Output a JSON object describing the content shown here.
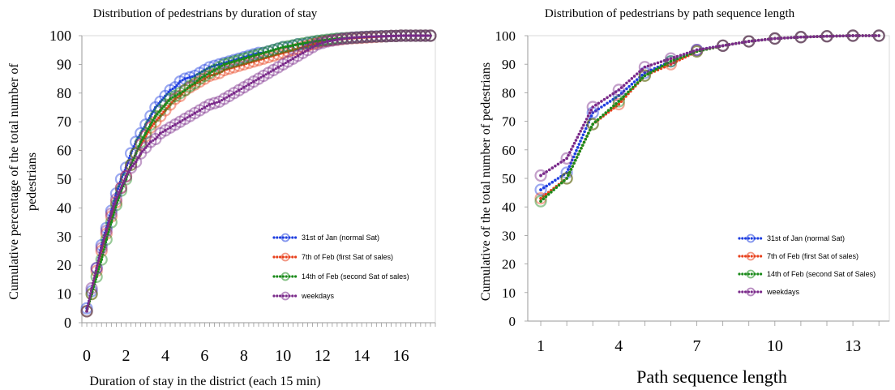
{
  "charts": [
    {
      "type": "line",
      "title": "Distribution of pedestrians by duration of stay",
      "xlabel": "Duration of stay in the district (each 15 min)",
      "ylabel": "Cumulative percentage of the total number of pedestrians",
      "ylabel_lines": [
        "Cumulative percentage of the total number of",
        "pedestrians"
      ],
      "xlim": [
        -0.25,
        17.75
      ],
      "ylim": [
        0,
        100
      ],
      "xticks": [
        "0",
        "2",
        "4",
        "6",
        "8",
        "10",
        "12",
        "14",
        "16"
      ],
      "yticks": [
        "0",
        "10",
        "20",
        "30",
        "40",
        "50",
        "60",
        "70",
        "80",
        "90",
        "100"
      ],
      "grid": false,
      "legend_position": "lower-right",
      "series": [
        {
          "name": "31st of Jan (normal Sat)",
          "color": "#1f3fe0",
          "x": [
            0,
            0.25,
            0.5,
            0.75,
            1,
            1.25,
            1.5,
            1.75,
            2,
            2.25,
            2.5,
            2.75,
            3,
            3.25,
            3.5,
            3.75,
            4,
            4.25,
            4.5,
            4.75,
            5,
            5.25,
            5.5,
            5.75,
            6,
            6.25,
            6.5,
            6.75,
            7,
            7.25,
            7.5,
            7.75,
            8,
            8.25,
            8.5,
            8.75,
            9,
            9.25,
            9.5,
            9.75,
            10,
            10.25,
            10.5,
            10.75,
            11,
            11.25,
            11.5,
            11.75,
            12,
            12.25,
            12.5,
            12.75,
            13,
            13.25,
            13.5,
            13.75,
            14,
            14.25,
            14.5,
            14.75,
            15,
            15.25,
            15.5,
            15.75,
            16,
            16.25,
            16.5,
            16.75,
            17,
            17.25,
            17.5
          ],
          "y": [
            5,
            11,
            19,
            27,
            33,
            39,
            45,
            50,
            54,
            59,
            63,
            66,
            69,
            72,
            75,
            77,
            79,
            81,
            82,
            84,
            85,
            85.5,
            86,
            87,
            88,
            89,
            89.5,
            90,
            90.5,
            91,
            91.5,
            92,
            92.5,
            93,
            93.5,
            94,
            94,
            94.5,
            95,
            95.5,
            96,
            96,
            96.5,
            97,
            97,
            97.5,
            97.7,
            98,
            98.2,
            98.4,
            98.6,
            98.8,
            99,
            99,
            99.2,
            99.3,
            99.4,
            99.5,
            99.6,
            99.7,
            99.8,
            99.8,
            99.9,
            99.9,
            100,
            100,
            100,
            100,
            100,
            100,
            100
          ]
        },
        {
          "name": "7th of Feb (first Sat of sales)",
          "color": "#e8401c",
          "x": [
            0,
            0.25,
            0.5,
            0.75,
            1,
            1.25,
            1.5,
            1.75,
            2,
            2.25,
            2.5,
            2.75,
            3,
            3.25,
            3.5,
            3.75,
            4,
            4.25,
            4.5,
            4.75,
            5,
            5.25,
            5.5,
            5.75,
            6,
            6.25,
            6.5,
            6.75,
            7,
            7.25,
            7.5,
            7.75,
            8,
            8.25,
            8.5,
            8.75,
            9,
            9.25,
            9.5,
            9.75,
            10,
            10.25,
            10.5,
            10.75,
            11,
            11.25,
            11.5,
            11.75,
            12,
            12.25,
            12.5,
            12.75,
            13,
            13.25,
            13.5,
            13.75,
            14,
            14.25,
            14.5,
            14.75,
            15,
            15.25,
            15.5,
            15.75,
            16,
            16.25,
            16.5,
            16.75,
            17,
            17.25,
            17.5
          ],
          "y": [
            4,
            10,
            18,
            25,
            31,
            37,
            42,
            47,
            51,
            55,
            59,
            62,
            65,
            68,
            70,
            72,
            74,
            76,
            78,
            79,
            81,
            82,
            83,
            84,
            85,
            86,
            86.5,
            87,
            88,
            88.5,
            89,
            89.5,
            90,
            90.5,
            91,
            91.5,
            92,
            92.5,
            93,
            93.5,
            94,
            94.5,
            95,
            95.5,
            96,
            96.5,
            97,
            97.5,
            98,
            98.2,
            98.4,
            98.6,
            98.8,
            99,
            99.1,
            99.2,
            99.3,
            99.4,
            99.5,
            99.6,
            99.7,
            99.8,
            99.9,
            99.9,
            100,
            100,
            100,
            100,
            100,
            100,
            100
          ]
        },
        {
          "name": "14th of Feb (second Sat of sales)",
          "color": "#1a8a1a",
          "x": [
            0,
            0.25,
            0.5,
            0.75,
            1,
            1.25,
            1.5,
            1.75,
            2,
            2.25,
            2.5,
            2.75,
            3,
            3.25,
            3.5,
            3.75,
            4,
            4.25,
            4.5,
            4.75,
            5,
            5.25,
            5.5,
            5.75,
            6,
            6.25,
            6.5,
            6.75,
            7,
            7.25,
            7.5,
            7.75,
            8,
            8.25,
            8.5,
            8.75,
            9,
            9.25,
            9.5,
            9.75,
            10,
            10.25,
            10.5,
            10.75,
            11,
            11.25,
            11.5,
            11.75,
            12,
            12.25,
            12.5,
            12.75,
            13,
            13.25,
            13.5,
            13.75,
            14,
            14.25,
            14.5,
            14.75,
            15,
            15.25,
            15.5,
            15.75,
            16,
            16.25,
            16.5,
            16.75,
            17,
            17.25,
            17.5
          ],
          "y": [
            4,
            10,
            16,
            22,
            29,
            35,
            41,
            46,
            50,
            55,
            59,
            63,
            66,
            69,
            72,
            74,
            76,
            78,
            79,
            80,
            81,
            82.5,
            83.5,
            85,
            86,
            87,
            88,
            89,
            90,
            90.5,
            91,
            91.5,
            92,
            92.5,
            93,
            93.5,
            94,
            94.5,
            95,
            95.5,
            96,
            96.3,
            96.6,
            97,
            97.3,
            97.6,
            97.9,
            98.2,
            98.4,
            98.6,
            98.8,
            99,
            99.1,
            99.2,
            99.3,
            99.4,
            99.5,
            99.6,
            99.7,
            99.7,
            99.8,
            99.8,
            99.9,
            99.9,
            100,
            100,
            100,
            100,
            100,
            100,
            100
          ]
        },
        {
          "name": "weekdays",
          "color": "#7a2a8a",
          "x": [
            0,
            0.25,
            0.5,
            0.75,
            1,
            1.25,
            1.5,
            1.75,
            2,
            2.25,
            2.5,
            2.75,
            3,
            3.25,
            3.5,
            3.75,
            4,
            4.25,
            4.5,
            4.75,
            5,
            5.25,
            5.5,
            5.75,
            6,
            6.25,
            6.5,
            6.75,
            7,
            7.25,
            7.5,
            7.75,
            8,
            8.25,
            8.5,
            8.75,
            9,
            9.25,
            9.5,
            9.75,
            10,
            10.25,
            10.5,
            10.75,
            11,
            11.25,
            11.5,
            11.75,
            12,
            12.25,
            12.5,
            12.75,
            13,
            13.25,
            13.5,
            13.75,
            14,
            14.25,
            14.5,
            14.75,
            15,
            15.25,
            15.5,
            15.75,
            16,
            16.25,
            16.5,
            16.75,
            17,
            17.25,
            17.5
          ],
          "y": [
            4,
            12,
            19,
            26,
            32,
            38,
            43,
            47,
            51,
            54,
            56,
            59,
            61,
            63,
            64,
            66,
            67,
            68,
            69,
            70,
            71,
            72,
            73,
            74,
            75,
            76,
            76.5,
            77,
            78,
            79,
            80,
            81,
            82,
            83,
            84,
            85,
            86,
            87,
            88,
            89,
            90,
            91,
            92,
            93,
            94,
            95,
            96,
            97,
            97.5,
            98,
            98.3,
            98.6,
            98.9,
            99.1,
            99.3,
            99.4,
            99.5,
            99.6,
            99.7,
            99.7,
            99.8,
            99.8,
            99.9,
            99.9,
            100,
            100,
            100,
            100,
            100,
            100,
            100
          ]
        }
      ]
    },
    {
      "type": "line",
      "title": "Distribution of pedestrians by path sequence length",
      "xlabel": "Path sequence length",
      "ylabel": "Cumulative of the total number of pedestrians",
      "xlim": [
        0.5,
        14.4
      ],
      "ylim": [
        0,
        100
      ],
      "xticks": [
        "1",
        "4",
        "7",
        "10",
        "13"
      ],
      "yticks": [
        "0",
        "10",
        "20",
        "30",
        "40",
        "50",
        "60",
        "70",
        "80",
        "90",
        "100"
      ],
      "grid": false,
      "legend_position": "lower-right",
      "series": [
        {
          "name": "31st of Jan (normal Sat)",
          "color": "#1f3fe0",
          "x": [
            1,
            2,
            3,
            4,
            5,
            6,
            7,
            8,
            9,
            10,
            11,
            12,
            13,
            14
          ],
          "y": [
            46,
            52,
            73,
            79,
            87,
            91,
            95,
            96.5,
            98,
            99,
            99.5,
            99.8,
            100,
            100
          ]
        },
        {
          "name": "7th of Feb (first Sat of sales)",
          "color": "#e8401c",
          "x": [
            1,
            2,
            3,
            4,
            5,
            6,
            7,
            8,
            9,
            10,
            11,
            12,
            13,
            14
          ],
          "y": [
            43,
            50,
            69,
            76,
            86,
            90,
            94.5,
            96.5,
            98,
            99,
            99.5,
            99.8,
            100,
            100
          ]
        },
        {
          "name": "14th of Feb (second Sat of Sales)",
          "color": "#1a8a1a",
          "x": [
            1,
            2,
            3,
            4,
            5,
            6,
            7,
            8,
            9,
            10,
            11,
            12,
            13,
            14
          ],
          "y": [
            42,
            50,
            69,
            77,
            86,
            91,
            94.5,
            96.5,
            98,
            99,
            99.5,
            99.8,
            100,
            100
          ]
        },
        {
          "name": "weekdays",
          "color": "#7a2a8a",
          "x": [
            1,
            2,
            3,
            4,
            5,
            6,
            7,
            8,
            9,
            10,
            11,
            12,
            13,
            14
          ],
          "y": [
            51,
            57,
            75,
            81,
            89,
            92,
            95,
            96.5,
            98,
            99,
            99.5,
            99.8,
            100,
            100
          ]
        }
      ]
    }
  ]
}
